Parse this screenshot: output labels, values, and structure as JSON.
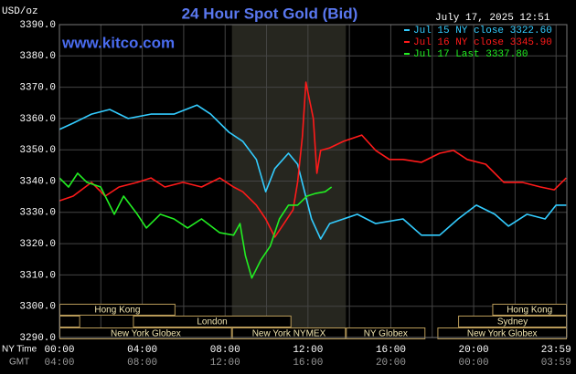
{
  "chart_data": {
    "type": "line",
    "title": "24 Hour Spot Gold (Bid)",
    "subtitle": "www.kitco.com",
    "timestamp": "July 17, 2025 12:51",
    "ylabel": "USD/oz",
    "xlabel": "NY Time",
    "x2label": "GMT",
    "xlim": [
      0,
      24.5
    ],
    "ylim": [
      3290,
      3390
    ],
    "xticks": [
      {
        "value": 0,
        "label": "00:00"
      },
      {
        "value": 4,
        "label": "04:00"
      },
      {
        "value": 8,
        "label": "08:00"
      },
      {
        "value": 12,
        "label": "12:00"
      },
      {
        "value": 16,
        "label": "16:00"
      },
      {
        "value": 20,
        "label": "20:00"
      },
      {
        "value": 23.98,
        "label": "23:59"
      }
    ],
    "gmt_labels": [
      "04:00",
      "08:00",
      "12:00",
      "16:00",
      "20:00",
      "00:00",
      "03:59"
    ],
    "minor_xticks": [
      2,
      6,
      10,
      14,
      18,
      22
    ],
    "yticks": [
      {
        "value": 3390,
        "label": "3390.0"
      },
      {
        "value": 3380,
        "label": "3380.0"
      },
      {
        "value": 3370,
        "label": "3370.0"
      },
      {
        "value": 3360,
        "label": "3360.0"
      },
      {
        "value": 3350,
        "label": "3350.0"
      },
      {
        "value": 3340,
        "label": "3340.0"
      },
      {
        "value": 3330,
        "label": "3330.0"
      },
      {
        "value": 3320,
        "label": "3320.0"
      },
      {
        "value": 3310,
        "label": "3310.0"
      },
      {
        "value": 3300,
        "label": "3300.0"
      },
      {
        "value": 3290,
        "label": "3290.0"
      }
    ],
    "grid": true,
    "legend": "top-right",
    "series": [
      {
        "name": "Jul 15 NY close 3322.60",
        "color": "#33ccff",
        "x": [
          0,
          0.66,
          1.55,
          2.43,
          3.32,
          4.42,
          5.53,
          6.64,
          7.3,
          8.19,
          8.85,
          9.51,
          9.96,
          10.4,
          11.06,
          11.5,
          12.17,
          12.61,
          13.05,
          13.72,
          14.38,
          15.27,
          16.59,
          17.48,
          18.36,
          19.25,
          20.13,
          21.02,
          21.68,
          22.57,
          23.45,
          23.98,
          24.47
        ],
        "values": [
          3356.5,
          3358.5,
          3361.4,
          3362.9,
          3360.0,
          3361.4,
          3361.4,
          3364.3,
          3361.4,
          3355.6,
          3352.7,
          3346.9,
          3336.6,
          3344.0,
          3348.9,
          3345.4,
          3327.9,
          3321.5,
          3326.4,
          3327.9,
          3329.4,
          3326.4,
          3327.9,
          3322.7,
          3322.7,
          3327.9,
          3332.3,
          3329.4,
          3325.6,
          3329.4,
          3327.9,
          3332.3,
          3332.3
        ]
      },
      {
        "name": "Jul 16 NY close 3345.90",
        "color": "#ff1a1a",
        "x": [
          0,
          0.66,
          1.55,
          2.21,
          2.88,
          3.76,
          4.42,
          5.09,
          5.97,
          6.86,
          7.74,
          8.41,
          8.85,
          9.51,
          9.96,
          10.4,
          10.84,
          11.28,
          11.5,
          11.73,
          11.9,
          12.08,
          12.26,
          12.43,
          12.61,
          13.05,
          13.72,
          14.6,
          15.27,
          15.93,
          16.59,
          17.48,
          18.36,
          19.03,
          19.69,
          20.58,
          21.46,
          22.35,
          23.23,
          23.89,
          24.47
        ],
        "values": [
          3333.7,
          3335.2,
          3339.6,
          3335.2,
          3338.1,
          3339.6,
          3341.0,
          3338.1,
          3339.6,
          3338.1,
          3341.0,
          3338.1,
          3336.6,
          3332.3,
          3327.9,
          3322.1,
          3326.4,
          3330.8,
          3339.6,
          3354.1,
          3371.6,
          3365.8,
          3360.0,
          3342.5,
          3349.8,
          3350.6,
          3352.7,
          3354.7,
          3349.8,
          3346.9,
          3346.9,
          3346.0,
          3348.9,
          3349.8,
          3346.9,
          3345.4,
          3339.6,
          3339.6,
          3338.1,
          3337.2,
          3341.0
        ]
      },
      {
        "name": "Jul 17 Last 3337.80",
        "color": "#22ee22",
        "x": [
          0,
          0.44,
          0.88,
          1.33,
          1.99,
          2.65,
          3.1,
          3.76,
          4.2,
          4.87,
          5.53,
          6.19,
          6.86,
          7.74,
          8.41,
          8.72,
          8.98,
          9.29,
          9.73,
          10.18,
          10.62,
          11.06,
          11.5,
          11.95,
          12.39,
          12.83,
          13.14
        ],
        "values": [
          3341.0,
          3338.1,
          3342.5,
          3339.6,
          3338.1,
          3329.4,
          3335.2,
          3329.4,
          3325.0,
          3329.4,
          3327.9,
          3325.0,
          3327.9,
          3323.5,
          3322.7,
          3326.4,
          3316.2,
          3309.0,
          3314.8,
          3319.2,
          3327.9,
          3332.3,
          3332.3,
          3335.2,
          3336.1,
          3336.6,
          3338.1
        ]
      }
    ],
    "session_rows": [
      [
        {
          "label": "Hong Kong",
          "start": 0,
          "end": 5.6
        },
        {
          "label": "Hong Kong",
          "start": 20.9,
          "end": 24.5
        }
      ],
      [
        {
          "label": null,
          "start": 0,
          "end": 1.0
        },
        {
          "label": "London",
          "start": 3.55,
          "end": 11.2
        },
        {
          "label": "Sydney",
          "start": 19.25,
          "end": 24.5
        }
      ],
      [
        {
          "label": "New York Globex",
          "start": 0,
          "end": 8.33
        },
        {
          "label": "New York NYMEX",
          "start": 8.33,
          "end": 13.83,
          "shaded": true
        },
        {
          "label": "NY Globex",
          "start": 13.83,
          "end": 17.67
        },
        {
          "label": "New York Globex",
          "start": 18.25,
          "end": 24.5
        }
      ]
    ]
  }
}
